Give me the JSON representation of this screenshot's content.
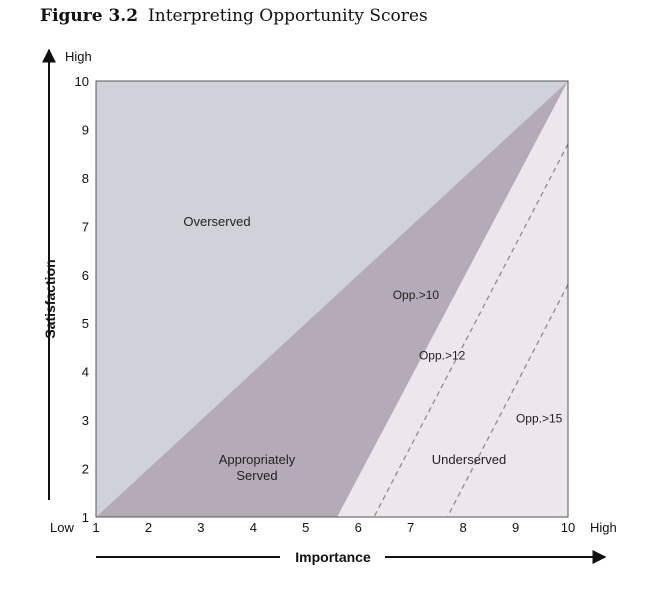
{
  "figure": {
    "number": "Figure 3.2",
    "title": "Interpreting Opportunity Scores"
  },
  "colors": {
    "overserved": "#cfd2d8",
    "appropriate": "#b5abb8",
    "underserved": "#ede6ed",
    "overserved_text": "#6e7a1c",
    "dashed": "#8c8c8c"
  },
  "chart_data": {
    "type": "area",
    "title": "Interpreting Opportunity Scores",
    "xlabel": "Importance",
    "ylabel": "Satisfaction",
    "xlim": [
      1,
      10
    ],
    "ylim": [
      1,
      10
    ],
    "x_ticks": [
      "1",
      "2",
      "3",
      "4",
      "5",
      "6",
      "7",
      "8",
      "9",
      "10"
    ],
    "y_ticks": [
      "1",
      "2",
      "3",
      "4",
      "5",
      "6",
      "7",
      "8",
      "9",
      "10"
    ],
    "x_low_label": "Low",
    "x_high_label": "High",
    "y_high_label": "High",
    "regions": [
      {
        "name": "Overserved",
        "label": "Overserved",
        "polygon": [
          [
            1,
            1
          ],
          [
            1,
            10
          ],
          [
            10,
            10
          ]
        ]
      },
      {
        "name": "Appropriately Served",
        "label_lines": [
          "Appropriately",
          "Served"
        ],
        "polygon": [
          [
            1,
            1
          ],
          [
            10,
            10
          ],
          [
            5.6,
            1
          ]
        ]
      },
      {
        "name": "Underserved",
        "label": "Underserved",
        "polygon": [
          [
            5.6,
            1
          ],
          [
            10,
            10
          ],
          [
            10,
            1
          ]
        ]
      }
    ],
    "opportunity_lines": [
      {
        "label": "Opp.>10",
        "from": [
          10,
          10
        ],
        "to": [
          5.6,
          1
        ],
        "style": "solid",
        "label_at": [
          7.1,
          5.5
        ]
      },
      {
        "label": "Opp.>12",
        "from": [
          10,
          8.7
        ],
        "to": [
          6.3,
          1
        ],
        "style": "dashed",
        "label_at": [
          7.6,
          4.25
        ]
      },
      {
        "label": "Opp.>15",
        "from": [
          10,
          5.8
        ],
        "to": [
          7.7,
          1
        ],
        "style": "dashed",
        "label_at": [
          9.45,
          2.95
        ]
      }
    ]
  }
}
